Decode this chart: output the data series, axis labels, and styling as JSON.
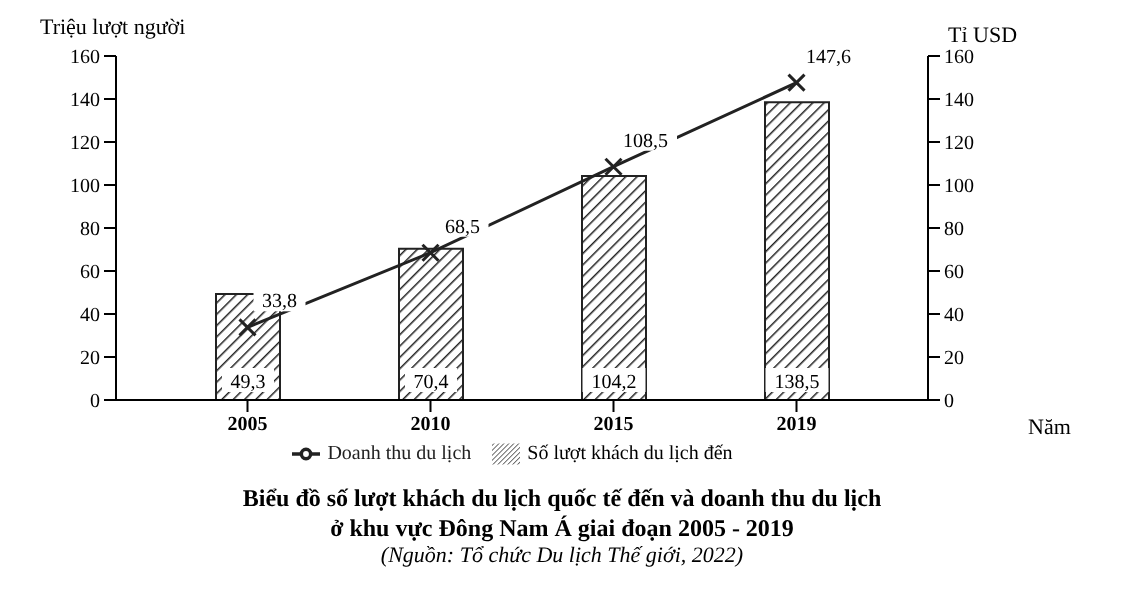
{
  "chart_data": {
    "type": "bar",
    "title": "Biểu đồ số lượt khách du lịch quốc tế đến và doanh thu du lịch\nở khu vực Đông Nam Á giai đoạn 2005 - 2019",
    "annotations": [
      "(Nguồn: Tổ chức Du lịch Thế giới, 2022)"
    ],
    "ylabel": "Triệu lượt người",
    "y2label": "Tỉ USD",
    "xlabel": "Năm",
    "categories": [
      "2005",
      "2010",
      "2015",
      "2019"
    ],
    "series": [
      {
        "name": "Số lượt khách du lịch đến",
        "color": "#222222",
        "values": [
          49.3,
          70.4,
          104.2,
          138.5
        ],
        "value_labels": [
          "49,3",
          "70,4",
          "104,2",
          "138,5"
        ]
      },
      {
        "name": "Doanh thu du lịch",
        "type": "line",
        "axis": "y2",
        "color": "#222222",
        "marker": "cross",
        "values": [
          33.8,
          68.5,
          108.5,
          147.6
        ],
        "value_labels": [
          "33,8",
          "68,5",
          "108,5",
          "147,6"
        ]
      }
    ],
    "ylim": [
      0,
      160
    ],
    "yticks": [
      0,
      20,
      40,
      60,
      80,
      100,
      120,
      140,
      160
    ],
    "y2lim": [
      0,
      160
    ],
    "y2ticks": [
      0,
      20,
      40,
      60,
      80,
      100,
      120,
      140,
      160
    ],
    "legend": "bottom"
  }
}
